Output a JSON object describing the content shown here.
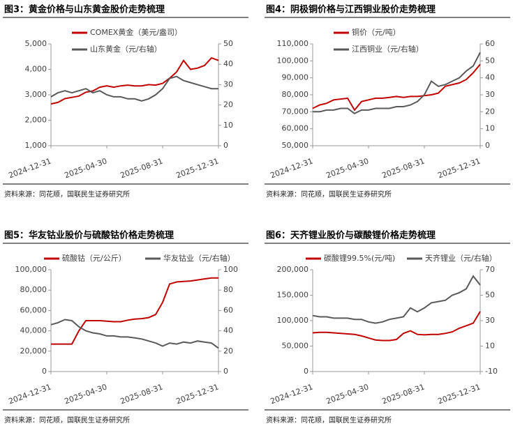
{
  "chart_data": [
    {
      "type": "line",
      "title": "图3：黄金价格与山东黄金股价走势梳理",
      "source": "资料来源：同花顺，国联民生证券研究所",
      "categories": [
        "2024-12-31",
        null,
        null,
        null,
        null,
        null,
        null,
        null,
        "2025-04-30",
        null,
        null,
        null,
        null,
        null,
        null,
        null,
        "2025-08-31",
        null,
        null,
        null,
        null,
        null,
        null,
        null,
        "2025-12-31"
      ],
      "ylim": [
        1000,
        5000
      ],
      "yticks": [
        {
          "value": 1000,
          "label": "1,000"
        },
        {
          "value": 2000,
          "label": "2,000"
        },
        {
          "value": 3000,
          "label": "3,000"
        },
        {
          "value": 4000,
          "label": "4,000"
        },
        {
          "value": 5000,
          "label": "5,000"
        }
      ],
      "y2lim": [
        0,
        50
      ],
      "y2ticks": [
        0,
        10,
        20,
        30,
        40,
        50
      ],
      "series": [
        {
          "name": "COMEX黄金（美元/盎司）",
          "color": "#c00000",
          "values": [
            2640,
            2700,
            2850,
            2900,
            2950,
            3100,
            3150,
            3300,
            3350,
            3300,
            3350,
            3380,
            3350,
            3350,
            3400,
            3380,
            3450,
            3650,
            3900,
            4350,
            4000,
            4050,
            4150,
            4450,
            4350
          ]
        },
        {
          "name": "山东黄金（元/右轴）",
          "color": "#595959",
          "axis": "y2",
          "values": [
            24,
            26,
            27,
            26,
            27,
            28,
            26,
            27,
            25,
            24,
            24,
            23,
            23,
            22,
            23,
            25,
            28,
            33,
            34,
            32,
            31,
            30,
            29,
            28,
            28
          ]
        }
      ]
    },
    {
      "type": "line",
      "title": "图4：阴极铜价格与江西铜业股价走势梳理",
      "source": "资料来源：同花顺，国联民生证券研究所",
      "categories": [
        "2024-12-31",
        null,
        null,
        null,
        null,
        null,
        null,
        null,
        "2025-04-30",
        null,
        null,
        null,
        null,
        null,
        null,
        null,
        "2025-08-31",
        null,
        null,
        null,
        null,
        null,
        null,
        null,
        "2025-12-31"
      ],
      "ylim": [
        50000,
        110000
      ],
      "yticks": [
        {
          "value": 50000,
          "label": "50,000"
        },
        {
          "value": 60000,
          "label": "60,000"
        },
        {
          "value": 70000,
          "label": "70,000"
        },
        {
          "value": 80000,
          "label": "80,000"
        },
        {
          "value": 90000,
          "label": "90,000"
        },
        {
          "value": 100000,
          "label": "100,000"
        },
        {
          "value": 110000,
          "label": "110,000"
        }
      ],
      "y2lim": [
        0,
        60
      ],
      "y2ticks": [
        0,
        10,
        20,
        30,
        40,
        50,
        60
      ],
      "series": [
        {
          "name": "铜价（元/吨）",
          "color": "#c00000",
          "values": [
            72000,
            74000,
            75000,
            77000,
            77500,
            78000,
            71000,
            76000,
            77000,
            78000,
            78000,
            78500,
            79000,
            78500,
            79000,
            79000,
            79500,
            80000,
            81000,
            85000,
            86000,
            87000,
            89000,
            93000,
            98000
          ]
        },
        {
          "name": "江西铜业（元/右轴）",
          "color": "#595959",
          "axis": "y2",
          "values": [
            20,
            20,
            21,
            21,
            22,
            22,
            19,
            21,
            21,
            22,
            22,
            22,
            23,
            23,
            24,
            26,
            30,
            38,
            35,
            36,
            38,
            40,
            44,
            47,
            55
          ]
        }
      ]
    },
    {
      "type": "line",
      "title": "图5：华友钴业股价与硫酸钴价格走势梳理",
      "source": "资料来源：同花顺，国联民生证券研究所",
      "categories": [
        "2024-12-31",
        null,
        null,
        null,
        null,
        null,
        null,
        null,
        "2025-04-30",
        null,
        null,
        null,
        null,
        null,
        null,
        null,
        "2025-08-31",
        null,
        null,
        null,
        null,
        null,
        null,
        null,
        "2025-12-31"
      ],
      "ylim": [
        0,
        100000
      ],
      "yticks": [
        0,
        {
          "value": 20000,
          "label": "20,000"
        },
        {
          "value": 40000,
          "label": "40,000"
        },
        {
          "value": 60000,
          "label": "60,000"
        },
        {
          "value": 80000,
          "label": "80,000"
        },
        {
          "value": 100000,
          "label": "100,000"
        }
      ],
      "y2lim": [
        0,
        100
      ],
      "y2ticks": [
        0,
        20,
        40,
        60,
        80,
        100
      ],
      "series": [
        {
          "name": "硫酸钴（元/公斤）",
          "color": "#c00000",
          "values": [
            27000,
            27000,
            27000,
            27000,
            40000,
            50000,
            50000,
            50000,
            49500,
            49000,
            49000,
            50500,
            51500,
            52000,
            53000,
            56000,
            68000,
            86000,
            88000,
            88500,
            89000,
            90000,
            91000,
            92000,
            92000
          ]
        },
        {
          "name": "华友钴业（元/右轴）",
          "color": "#595959",
          "axis": "y2",
          "values": [
            46,
            48,
            51,
            50,
            44,
            40,
            38,
            37,
            35,
            35,
            34,
            34,
            33,
            32,
            30,
            28,
            25,
            28,
            27,
            29,
            28,
            30,
            29,
            28,
            23
          ]
        }
      ]
    },
    {
      "type": "line",
      "title": "图6：天齐锂业股价与碳酸锂价格走势梳理",
      "source": "资料来源：同花顺，国联民生证券研究所",
      "categories": [
        "2024-12-31",
        null,
        null,
        null,
        null,
        null,
        null,
        null,
        "2025-04-30",
        null,
        null,
        null,
        null,
        null,
        null,
        null,
        "2025-08-31",
        null,
        null,
        null,
        null,
        null,
        null,
        null,
        "2025-12-31"
      ],
      "ylim": [
        0,
        200000
      ],
      "yticks": [
        0,
        {
          "value": 50000,
          "label": "50,000"
        },
        {
          "value": 100000,
          "label": "100,000"
        },
        {
          "value": 150000,
          "label": "150,000"
        },
        {
          "value": 200000,
          "label": "200,000"
        }
      ],
      "y2lim": [
        -10,
        70
      ],
      "y2ticks": [
        -10,
        10,
        30,
        50,
        70
      ],
      "series": [
        {
          "name": "碳酸锂99.5%(元/吨)",
          "color": "#c00000",
          "values": [
            76000,
            77000,
            77000,
            76000,
            75000,
            74000,
            73000,
            70000,
            66000,
            62000,
            61000,
            61000,
            63000,
            75000,
            80000,
            73000,
            72000,
            73000,
            73000,
            75000,
            78000,
            85000,
            90000,
            95000,
            118000
          ]
        },
        {
          "name": "天齐锂业（元/右轴）",
          "color": "#595959",
          "axis": "y2",
          "values": [
            34,
            33,
            33,
            32,
            32,
            32,
            31,
            31,
            29,
            28,
            29,
            31,
            32,
            33,
            40,
            37,
            40,
            44,
            45,
            46,
            50,
            52,
            55,
            65,
            58
          ]
        }
      ]
    }
  ]
}
